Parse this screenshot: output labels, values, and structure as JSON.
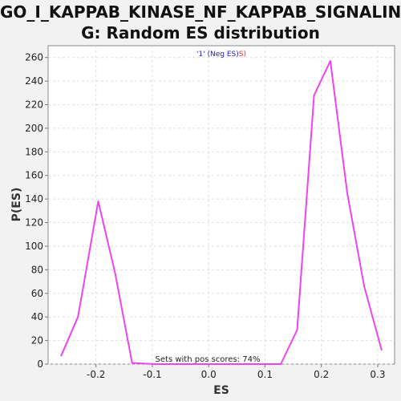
{
  "chart_data": {
    "type": "line",
    "title_line1": "GO_I_KAPPAB_KINASE_NF_KAPPAB_SIGNALIN",
    "title_line2": "G: Random ES distribution",
    "xlabel": "ES",
    "ylabel": "P(ES)",
    "xlim": [
      -0.285,
      0.33
    ],
    "ylim": [
      0,
      270
    ],
    "xticks": [
      -0.2,
      -0.1,
      0.0,
      0.1,
      0.2,
      0.3
    ],
    "xtick_labels": [
      "-0.2",
      "-0.1",
      "0.0",
      "0.1",
      "0.2",
      "0.3"
    ],
    "yticks": [
      0,
      20,
      40,
      60,
      80,
      100,
      120,
      140,
      160,
      180,
      200,
      220,
      240,
      260
    ],
    "ytick_labels": [
      "0",
      "20",
      "40",
      "60",
      "80",
      "100",
      "120",
      "140",
      "160",
      "180",
      "200",
      "220",
      "240",
      "260"
    ],
    "grid": true,
    "legend_position": "top-center",
    "legend": {
      "part1": "'1' (Neg ES)",
      "part2": "S)"
    },
    "annotation": "Sets with pos scores: 74%",
    "line_color": "#ee44ee",
    "series": [
      {
        "x": [
          -0.262,
          -0.232,
          -0.196,
          -0.166,
          -0.136,
          -0.095,
          -0.06,
          -0.03,
          0.0,
          0.03,
          0.06,
          0.095,
          0.128,
          0.157,
          0.187,
          0.216,
          0.246,
          0.276,
          0.307
        ],
        "y": [
          7,
          40,
          138,
          77,
          1,
          0,
          0,
          0,
          0,
          0,
          0,
          0,
          0,
          29,
          228,
          257,
          145,
          66,
          12
        ]
      }
    ]
  }
}
